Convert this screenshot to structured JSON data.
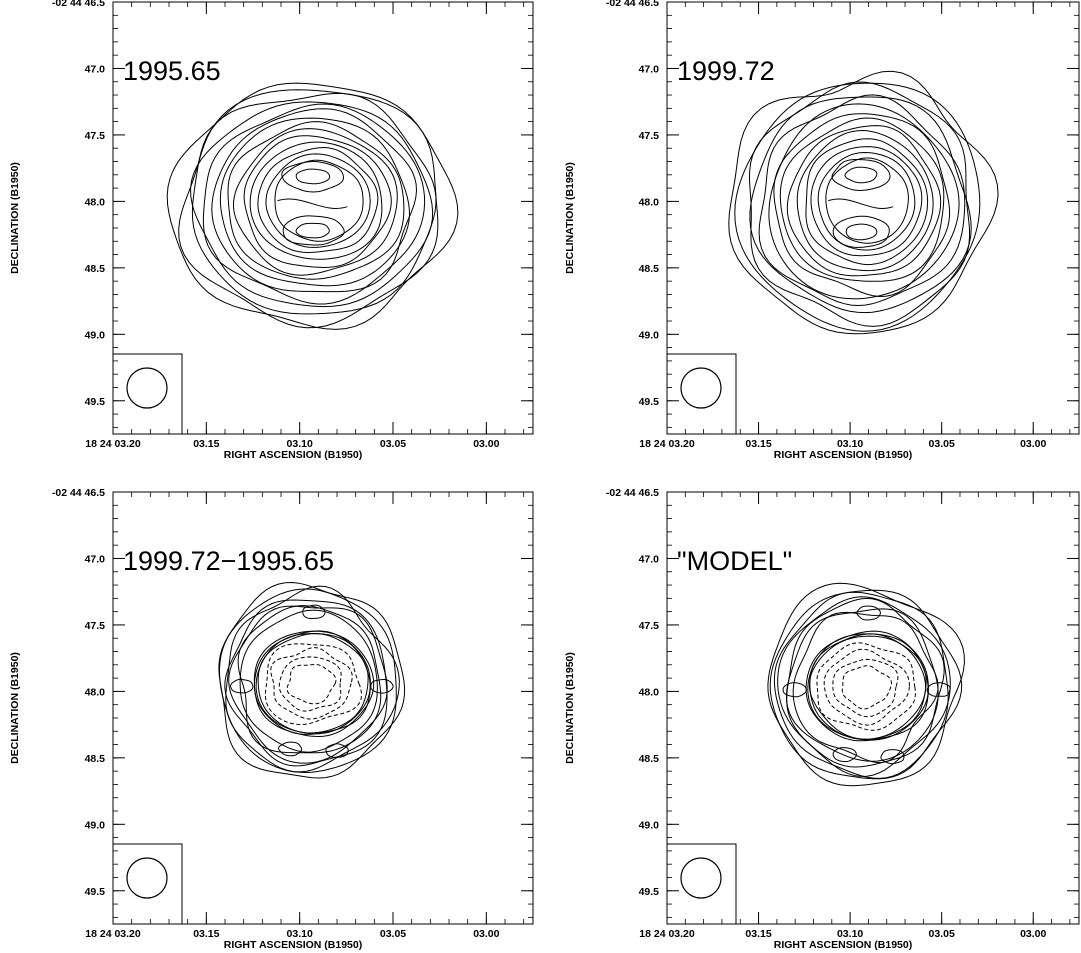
{
  "chart_data": [
    {
      "type": "contour",
      "panel_label": "1995.65",
      "xlabel": "RIGHT ASCENSION (B1950)",
      "ylabel": "DECLINATION (B1950)",
      "x_ticks": [
        "18 24 03.20",
        "03.15",
        "03.10",
        "03.05",
        "03.00"
      ],
      "y_ticks": [
        "-02 44 46.5",
        "47.0",
        "47.5",
        "48.0",
        "48.5",
        "49.0",
        "49.5"
      ],
      "xlim": [
        "18 24 03.20",
        "18 24 02.975"
      ],
      "ylim": [
        "-02 44 46.5",
        "-02 44 49.75"
      ],
      "beam": "circular, lower-left",
      "contours": "solid only; 14 nested levels with two inner peaks (north and south) around dec 47.75 and 48.3",
      "source_extent": {
        "ra": [
          "03.168",
          "03.020"
        ],
        "dec": [
          "47.1",
          "48.95"
        ]
      }
    },
    {
      "type": "contour",
      "panel_label": "1999.72",
      "xlabel": "RIGHT ASCENSION (B1950)",
      "ylabel": "DECLINATION (B1950)",
      "x_ticks": [
        "18 24 03.20",
        "03.15",
        "03.10",
        "03.05",
        "03.00"
      ],
      "y_ticks": [
        "-02 44 46.5",
        "47.0",
        "47.5",
        "48.0",
        "48.5",
        "49.0",
        "49.5"
      ],
      "xlim": [
        "18 24 03.20",
        "18 24 02.975"
      ],
      "ylim": [
        "-02 44 46.5",
        "-02 44 49.75"
      ],
      "beam": "circular, lower-left",
      "contours": "solid only; 14 nested levels with two inner peaks (north and south) around dec 47.75 and 48.3",
      "source_extent": {
        "ra": [
          "03.165",
          "03.025"
        ],
        "dec": [
          "47.05",
          "49.0"
        ]
      }
    },
    {
      "type": "contour",
      "panel_label": "1999.72−1995.65",
      "xlabel": "RIGHT ASCENSION (B1950)",
      "ylabel": "DECLINATION (B1950)",
      "x_ticks": [
        "18 24 03.20",
        "03.15",
        "03.10",
        "03.05",
        "03.00"
      ],
      "y_ticks": [
        "-02 44 46.5",
        "47.0",
        "47.5",
        "48.0",
        "48.5",
        "49.0",
        "49.5"
      ],
      "xlim": [
        "18 24 03.20",
        "18 24 02.975"
      ],
      "ylim": [
        "-02 44 46.5",
        "-02 44 49.75"
      ],
      "beam": "circular, lower-left",
      "contours": "solid positive ring of emission outside, dashed negative levels inside the shell",
      "source_extent": {
        "ra": [
          "03.145",
          "03.045"
        ],
        "dec": [
          "47.2",
          "48.65"
        ]
      }
    },
    {
      "type": "contour",
      "panel_label": "\"MODEL\"",
      "xlabel": "RIGHT ASCENSION (B1950)",
      "ylabel": "DECLINATION (B1950)",
      "x_ticks": [
        "18 24 03.20",
        "03.15",
        "03.10",
        "03.05",
        "03.00"
      ],
      "y_ticks": [
        "-02 44 46.5",
        "47.0",
        "47.5",
        "48.0",
        "48.5",
        "49.0",
        "49.5"
      ],
      "xlim": [
        "18 24 03.20",
        "18 24 02.975"
      ],
      "ylim": [
        "-02 44 46.5",
        "-02 44 49.75"
      ],
      "beam": "circular, lower-left",
      "contours": "solid positive ring of emission outside, dashed negative levels inside the shell",
      "source_extent": {
        "ra": [
          "03.145",
          "03.040"
        ],
        "dec": [
          "47.2",
          "48.7"
        ]
      }
    }
  ]
}
